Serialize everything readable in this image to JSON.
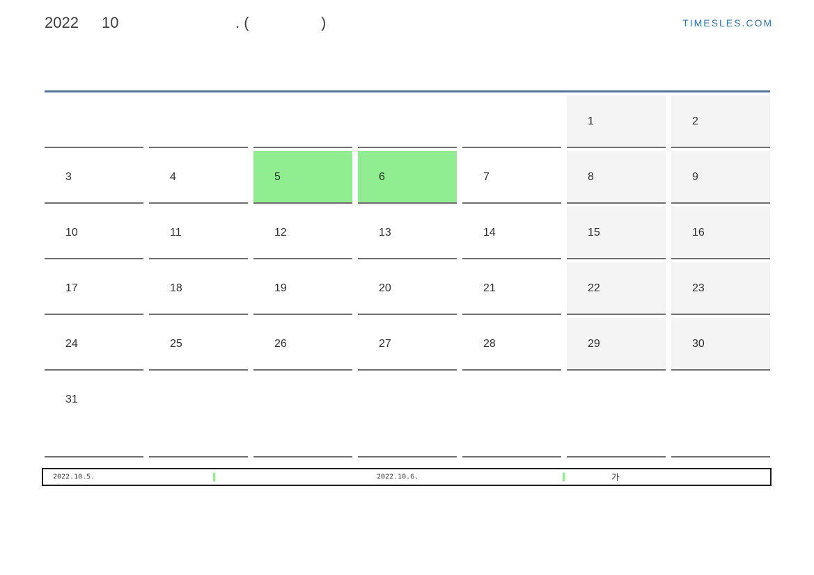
{
  "header": {
    "year": "2022",
    "month": "10",
    "punctuation_open": ". (",
    "punctuation_close": ")",
    "logo": "TIMESLES.COM",
    "logo_color": "#2e74b5"
  },
  "calendar": {
    "top_border_color": "#53759e",
    "cell_border_color": "#6f6f6f",
    "weekend_fill": "#f4f4f4",
    "highlight_color": "#90EE90",
    "weeks": [
      [
        "",
        "",
        "",
        "",
        "",
        "1",
        "2"
      ],
      [
        "3",
        "4",
        "5",
        "6",
        "7",
        "8",
        "9"
      ],
      [
        "10",
        "11",
        "12",
        "13",
        "14",
        "15",
        "16"
      ],
      [
        "17",
        "18",
        "19",
        "20",
        "21",
        "22",
        "23"
      ],
      [
        "24",
        "25",
        "26",
        "27",
        "28",
        "29",
        "30"
      ],
      [
        "31",
        "",
        "",
        "",
        "",
        "",
        ""
      ]
    ],
    "highlighted_days": [
      "5",
      "6"
    ]
  },
  "legend": {
    "marker_color": "#90EE90",
    "date_start": "2022.10.5.",
    "date_end": "2022.10.6.",
    "note": "가"
  }
}
